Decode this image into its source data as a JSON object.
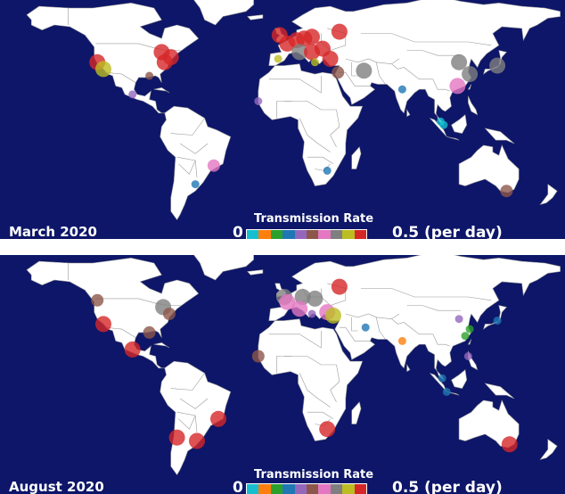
{
  "colors": {
    "ocean": "#0d1668",
    "land": "#ffffff",
    "border": "#9a9a9a",
    "colorbar": [
      "#17becf",
      "#ff7f0e",
      "#2ca02c",
      "#1f77b4",
      "#9467bd",
      "#8c564b",
      "#e377c2",
      "#7f7f7f",
      "#bcbd22",
      "#d62728"
    ]
  },
  "legend": {
    "title": "Transmission Rate",
    "min": "0",
    "max": "0.5 (per day)"
  },
  "panels": [
    {
      "label": "March 2020",
      "points": [
        {
          "lon": -122,
          "lat": 38,
          "rate": 0.5,
          "size": "large"
        },
        {
          "lon": -118,
          "lat": 34,
          "rate": 0.45,
          "size": "large"
        },
        {
          "lon": -80,
          "lat": 44,
          "rate": 0.5,
          "size": "large"
        },
        {
          "lon": -74,
          "lat": 41,
          "rate": 0.5,
          "size": "large"
        },
        {
          "lon": -78,
          "lat": 38,
          "rate": 0.5,
          "size": "large"
        },
        {
          "lon": -88,
          "lat": 30,
          "rate": 0.28,
          "size": "small"
        },
        {
          "lon": -99,
          "lat": 19,
          "rate": 0.2,
          "size": "small"
        },
        {
          "lon": -17,
          "lat": 15,
          "rate": 0.2,
          "size": "small"
        },
        {
          "lon": -46,
          "lat": -23,
          "rate": 0.35,
          "size": "medium"
        },
        {
          "lon": -58,
          "lat": -34,
          "rate": 0.15,
          "size": "small"
        },
        {
          "lon": -3,
          "lat": 54,
          "rate": 0.5,
          "size": "large"
        },
        {
          "lon": 2,
          "lat": 49,
          "rate": 0.5,
          "size": "large"
        },
        {
          "lon": 8,
          "lat": 51,
          "rate": 0.5,
          "size": "large"
        },
        {
          "lon": 13,
          "lat": 52,
          "rate": 0.5,
          "size": "large"
        },
        {
          "lon": 18,
          "lat": 53,
          "rate": 0.5,
          "size": "large"
        },
        {
          "lon": 36,
          "lat": 56,
          "rate": 0.5,
          "size": "large"
        },
        {
          "lon": 10,
          "lat": 44,
          "rate": 0.4,
          "size": "large"
        },
        {
          "lon": 18,
          "lat": 44,
          "rate": 0.5,
          "size": "large"
        },
        {
          "lon": 25,
          "lat": 46,
          "rate": 0.5,
          "size": "large"
        },
        {
          "lon": 30,
          "lat": 40,
          "rate": 0.5,
          "size": "large"
        },
        {
          "lon": -4,
          "lat": 40,
          "rate": 0.45,
          "size": "small"
        },
        {
          "lon": 20,
          "lat": 38,
          "rate": 0.45,
          "size": "small"
        },
        {
          "lon": 35,
          "lat": 32,
          "rate": 0.3,
          "size": "medium"
        },
        {
          "lon": 52,
          "lat": 33,
          "rate": 0.4,
          "size": "large"
        },
        {
          "lon": 77,
          "lat": 22,
          "rate": 0.15,
          "size": "small"
        },
        {
          "lon": 102,
          "lat": 3,
          "rate": 0.0,
          "size": "small"
        },
        {
          "lon": 104,
          "lat": 1,
          "rate": 0.0,
          "size": "small"
        },
        {
          "lon": 28,
          "lat": -26,
          "rate": 0.15,
          "size": "small"
        },
        {
          "lon": 114,
          "lat": 38,
          "rate": 0.4,
          "size": "large"
        },
        {
          "lon": 121,
          "lat": 31,
          "rate": 0.4,
          "size": "large"
        },
        {
          "lon": 113,
          "lat": 24,
          "rate": 0.35,
          "size": "large"
        },
        {
          "lon": 139,
          "lat": 36,
          "rate": 0.4,
          "size": "large"
        },
        {
          "lon": 145,
          "lat": -38,
          "rate": 0.3,
          "size": "medium"
        }
      ]
    },
    {
      "label": "August 2020",
      "points": [
        {
          "lon": -122,
          "lat": 48,
          "rate": 0.3,
          "size": "medium"
        },
        {
          "lon": -118,
          "lat": 34,
          "rate": 0.5,
          "size": "large"
        },
        {
          "lon": -79,
          "lat": 44,
          "rate": 0.4,
          "size": "large"
        },
        {
          "lon": -75,
          "lat": 40,
          "rate": 0.3,
          "size": "medium"
        },
        {
          "lon": -88,
          "lat": 29,
          "rate": 0.28,
          "size": "medium"
        },
        {
          "lon": -99,
          "lat": 19,
          "rate": 0.5,
          "size": "large"
        },
        {
          "lon": -17,
          "lat": 15,
          "rate": 0.3,
          "size": "medium"
        },
        {
          "lon": -43,
          "lat": -22,
          "rate": 0.5,
          "size": "large"
        },
        {
          "lon": -70,
          "lat": -33,
          "rate": 0.5,
          "size": "large"
        },
        {
          "lon": -57,
          "lat": -35,
          "rate": 0.5,
          "size": "large"
        },
        {
          "lon": 28,
          "lat": -28,
          "rate": 0.5,
          "size": "large"
        },
        {
          "lon": 147,
          "lat": -37,
          "rate": 0.5,
          "size": "large"
        },
        {
          "lon": 0,
          "lat": 50,
          "rate": 0.4,
          "size": "large"
        },
        {
          "lon": 2,
          "lat": 47,
          "rate": 0.35,
          "size": "large"
        },
        {
          "lon": 12,
          "lat": 50,
          "rate": 0.4,
          "size": "large"
        },
        {
          "lon": 20,
          "lat": 49,
          "rate": 0.4,
          "size": "large"
        },
        {
          "lon": 36,
          "lat": 56,
          "rate": 0.5,
          "size": "large"
        },
        {
          "lon": 28,
          "lat": 41,
          "rate": 0.35,
          "size": "large"
        },
        {
          "lon": 32,
          "lat": 39,
          "rate": 0.45,
          "size": "large"
        },
        {
          "lon": 10,
          "lat": 43,
          "rate": 0.35,
          "size": "large"
        },
        {
          "lon": 18,
          "lat": 40,
          "rate": 0.2,
          "size": "small"
        },
        {
          "lon": 53,
          "lat": 32,
          "rate": 0.15,
          "size": "small"
        },
        {
          "lon": 77,
          "lat": 24,
          "rate": 0.05,
          "size": "small"
        },
        {
          "lon": 114,
          "lat": 37,
          "rate": 0.2,
          "size": "small"
        },
        {
          "lon": 121,
          "lat": 31,
          "rate": 0.1,
          "size": "small"
        },
        {
          "lon": 118,
          "lat": 27,
          "rate": 0.1,
          "size": "small"
        },
        {
          "lon": 139,
          "lat": 36,
          "rate": 0.15,
          "size": "small"
        },
        {
          "lon": 120,
          "lat": 15,
          "rate": 0.2,
          "size": "small"
        },
        {
          "lon": 103,
          "lat": 2,
          "rate": 0.15,
          "size": "small"
        },
        {
          "lon": 106,
          "lat": -6,
          "rate": 0.15,
          "size": "small"
        }
      ]
    }
  ]
}
